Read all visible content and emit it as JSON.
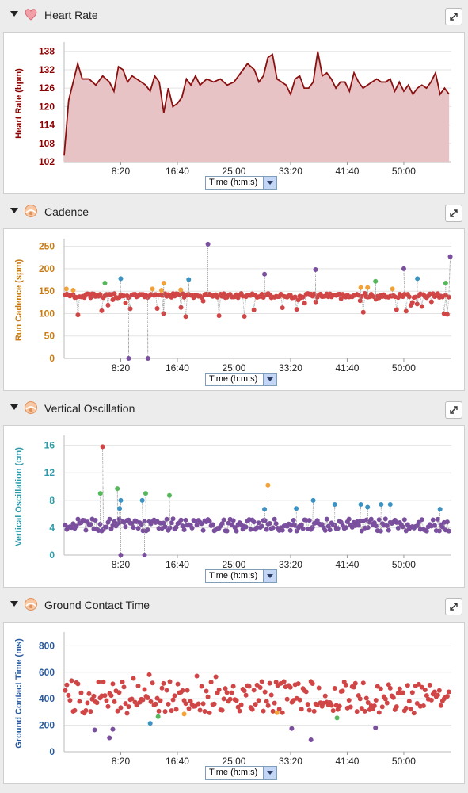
{
  "panels": [
    {
      "title": "Heart Rate",
      "icon": "heart-icon",
      "selector_label": "Time (h:m:s)",
      "chart_data": {
        "type": "area",
        "ylabel": "Heart Rate (bpm)",
        "ylabel_color": "#8b0000",
        "line_color": "#8b1010",
        "fill_color": "#e8c3c5",
        "ylim": [
          102,
          140
        ],
        "yticks": [
          102,
          108,
          114,
          120,
          126,
          132,
          138
        ],
        "xlim": [
          0,
          3420
        ],
        "xticks": [
          500,
          1000,
          1500,
          2000,
          2500,
          3000
        ],
        "xtick_labels": [
          "8:20",
          "16:40",
          "25:00",
          "33:20",
          "41:40",
          "50:00"
        ],
        "x": [
          0,
          40,
          80,
          120,
          160,
          220,
          280,
          340,
          400,
          440,
          480,
          520,
          560,
          600,
          640,
          680,
          720,
          760,
          800,
          840,
          880,
          920,
          960,
          1000,
          1040,
          1080,
          1120,
          1160,
          1200,
          1260,
          1320,
          1380,
          1440,
          1500,
          1560,
          1620,
          1680,
          1720,
          1760,
          1800,
          1840,
          1880,
          1920,
          1960,
          2000,
          2040,
          2080,
          2120,
          2160,
          2200,
          2240,
          2280,
          2320,
          2360,
          2400,
          2440,
          2480,
          2520,
          2560,
          2600,
          2640,
          2680,
          2720,
          2760,
          2800,
          2840,
          2880,
          2920,
          2960,
          3000,
          3040,
          3080,
          3120,
          3160,
          3200,
          3240,
          3280,
          3320,
          3360,
          3400
        ],
        "y": [
          104,
          122,
          128,
          134,
          129,
          129,
          127,
          130,
          128,
          125,
          133,
          132,
          128,
          130,
          129,
          128,
          127,
          125,
          130,
          128,
          118,
          126,
          120,
          121,
          123,
          129,
          127,
          130,
          127,
          129,
          128,
          129,
          127,
          128,
          131,
          134,
          132,
          128,
          130,
          136,
          137,
          129,
          128,
          127,
          124,
          129,
          130,
          126,
          126,
          128,
          138,
          130,
          131,
          129,
          126,
          128,
          128,
          125,
          131,
          128,
          126,
          127,
          128,
          129,
          128,
          128,
          129,
          125,
          128,
          125,
          127,
          124,
          126,
          127,
          126,
          128,
          131,
          124,
          126,
          124
        ]
      }
    },
    {
      "title": "Cadence",
      "icon": "runner-icon",
      "selector_label": "Time (h:m:s)",
      "chart_data": {
        "type": "scatter",
        "ylabel": "Run Cadence (spm)",
        "ylabel_color": "#c77a14",
        "ylim": [
          0,
          260
        ],
        "yticks": [
          0,
          50,
          100,
          150,
          200,
          250
        ],
        "xlim": [
          0,
          3420
        ],
        "xticks": [
          500,
          1000,
          1500,
          2000,
          2500,
          3000
        ],
        "xtick_labels": [
          "8:20",
          "16:40",
          "25:00",
          "33:20",
          "41:40",
          "50:00"
        ],
        "base_color": "#d04545",
        "highlights": [
          {
            "x": 20,
            "y": 155,
            "color": "#f3a23a"
          },
          {
            "x": 80,
            "y": 152,
            "color": "#f3a23a"
          },
          {
            "x": 360,
            "y": 168,
            "color": "#55b95b"
          },
          {
            "x": 500,
            "y": 178,
            "color": "#3a93c2"
          },
          {
            "x": 570,
            "y": 0,
            "color": "#7a4f9e"
          },
          {
            "x": 740,
            "y": 0,
            "color": "#7a4f9e"
          },
          {
            "x": 780,
            "y": 155,
            "color": "#f3a23a"
          },
          {
            "x": 860,
            "y": 152,
            "color": "#f3a23a"
          },
          {
            "x": 880,
            "y": 168,
            "color": "#f3a23a"
          },
          {
            "x": 1030,
            "y": 153,
            "color": "#f3a23a"
          },
          {
            "x": 1100,
            "y": 176,
            "color": "#3a93c2"
          },
          {
            "x": 1270,
            "y": 255,
            "color": "#7a4f9e"
          },
          {
            "x": 1770,
            "y": 188,
            "color": "#7a4f9e"
          },
          {
            "x": 2220,
            "y": 198,
            "color": "#7a4f9e"
          },
          {
            "x": 2620,
            "y": 158,
            "color": "#f3a23a"
          },
          {
            "x": 2680,
            "y": 158,
            "color": "#f3a23a"
          },
          {
            "x": 2750,
            "y": 172,
            "color": "#55b95b"
          },
          {
            "x": 2900,
            "y": 155,
            "color": "#f3a23a"
          },
          {
            "x": 3000,
            "y": 200,
            "color": "#7a4f9e"
          },
          {
            "x": 3120,
            "y": 178,
            "color": "#3a93c2"
          },
          {
            "x": 3370,
            "y": 168,
            "color": "#55b95b"
          },
          {
            "x": 3410,
            "y": 227,
            "color": "#7a4f9e"
          }
        ],
        "series_seed": [
          140,
          5,
          8
        ]
      }
    },
    {
      "title": "Vertical Oscillation",
      "icon": "runner-icon",
      "selector_label": "Time (h:m:s)",
      "chart_data": {
        "type": "scatter",
        "ylabel": "Vertical Oscillation (cm)",
        "ylabel_color": "#2e9aa8",
        "ylim": [
          0,
          17
        ],
        "yticks": [
          0,
          4,
          8,
          12,
          16
        ],
        "xlim": [
          0,
          3420
        ],
        "xticks": [
          500,
          1000,
          1500,
          2000,
          2500,
          3000
        ],
        "xtick_labels": [
          "8:20",
          "16:40",
          "25:00",
          "33:20",
          "41:40",
          "50:00"
        ],
        "base_color": "#7a4f9e",
        "highlights": [
          {
            "x": 340,
            "y": 15.8,
            "color": "#d04545"
          },
          {
            "x": 320,
            "y": 9,
            "color": "#55b95b"
          },
          {
            "x": 470,
            "y": 9.7,
            "color": "#55b95b"
          },
          {
            "x": 500,
            "y": 8,
            "color": "#3a93c2"
          },
          {
            "x": 490,
            "y": 6.8,
            "color": "#3a93c2"
          },
          {
            "x": 690,
            "y": 8,
            "color": "#3a93c2"
          },
          {
            "x": 720,
            "y": 9,
            "color": "#55b95b"
          },
          {
            "x": 930,
            "y": 8.7,
            "color": "#55b95b"
          },
          {
            "x": 1770,
            "y": 6.7,
            "color": "#3a93c2"
          },
          {
            "x": 1800,
            "y": 10.2,
            "color": "#f3a23a"
          },
          {
            "x": 2050,
            "y": 6.8,
            "color": "#3a93c2"
          },
          {
            "x": 2200,
            "y": 8,
            "color": "#3a93c2"
          },
          {
            "x": 2390,
            "y": 7.4,
            "color": "#3a93c2"
          },
          {
            "x": 2620,
            "y": 7.4,
            "color": "#3a93c2"
          },
          {
            "x": 2680,
            "y": 7,
            "color": "#3a93c2"
          },
          {
            "x": 2800,
            "y": 7.4,
            "color": "#3a93c2"
          },
          {
            "x": 2880,
            "y": 7.4,
            "color": "#3a93c2"
          },
          {
            "x": 3320,
            "y": 6.7,
            "color": "#3a93c2"
          },
          {
            "x": 500,
            "y": 0,
            "color": "#7a4f9e"
          },
          {
            "x": 710,
            "y": 0,
            "color": "#7a4f9e"
          }
        ],
        "series_seed": [
          4.4,
          0.9,
          2.6
        ]
      }
    },
    {
      "title": "Ground Contact Time",
      "icon": "runner-icon",
      "selector_label": "Time (h:m:s)",
      "chart_data": {
        "type": "scatter",
        "ylabel": "Ground Contact Time (ms)",
        "ylabel_color": "#2a5a9c",
        "ylim": [
          0,
          880
        ],
        "yticks": [
          0,
          200,
          400,
          600,
          800
        ],
        "xlim": [
          0,
          3420
        ],
        "xticks": [
          500,
          1000,
          1500,
          2000,
          2500,
          3000
        ],
        "xtick_labels": [
          "8:20",
          "16:40",
          "25:00",
          "33:20",
          "41:40",
          "50:00"
        ],
        "base_color": "#d04545",
        "highlights": [
          {
            "x": 270,
            "y": 165,
            "color": "#7a4f9e"
          },
          {
            "x": 400,
            "y": 105,
            "color": "#7a4f9e"
          },
          {
            "x": 430,
            "y": 170,
            "color": "#7a4f9e"
          },
          {
            "x": 760,
            "y": 215,
            "color": "#3a93c2"
          },
          {
            "x": 830,
            "y": 265,
            "color": "#55b95b"
          },
          {
            "x": 1060,
            "y": 285,
            "color": "#f3a23a"
          },
          {
            "x": 1880,
            "y": 295,
            "color": "#f3a23a"
          },
          {
            "x": 2010,
            "y": 175,
            "color": "#7a4f9e"
          },
          {
            "x": 2180,
            "y": 90,
            "color": "#7a4f9e"
          },
          {
            "x": 2410,
            "y": 255,
            "color": "#55b95b"
          },
          {
            "x": 2750,
            "y": 180,
            "color": "#7a4f9e"
          }
        ],
        "series_seed": [
          410,
          30,
          3
        ]
      }
    }
  ]
}
